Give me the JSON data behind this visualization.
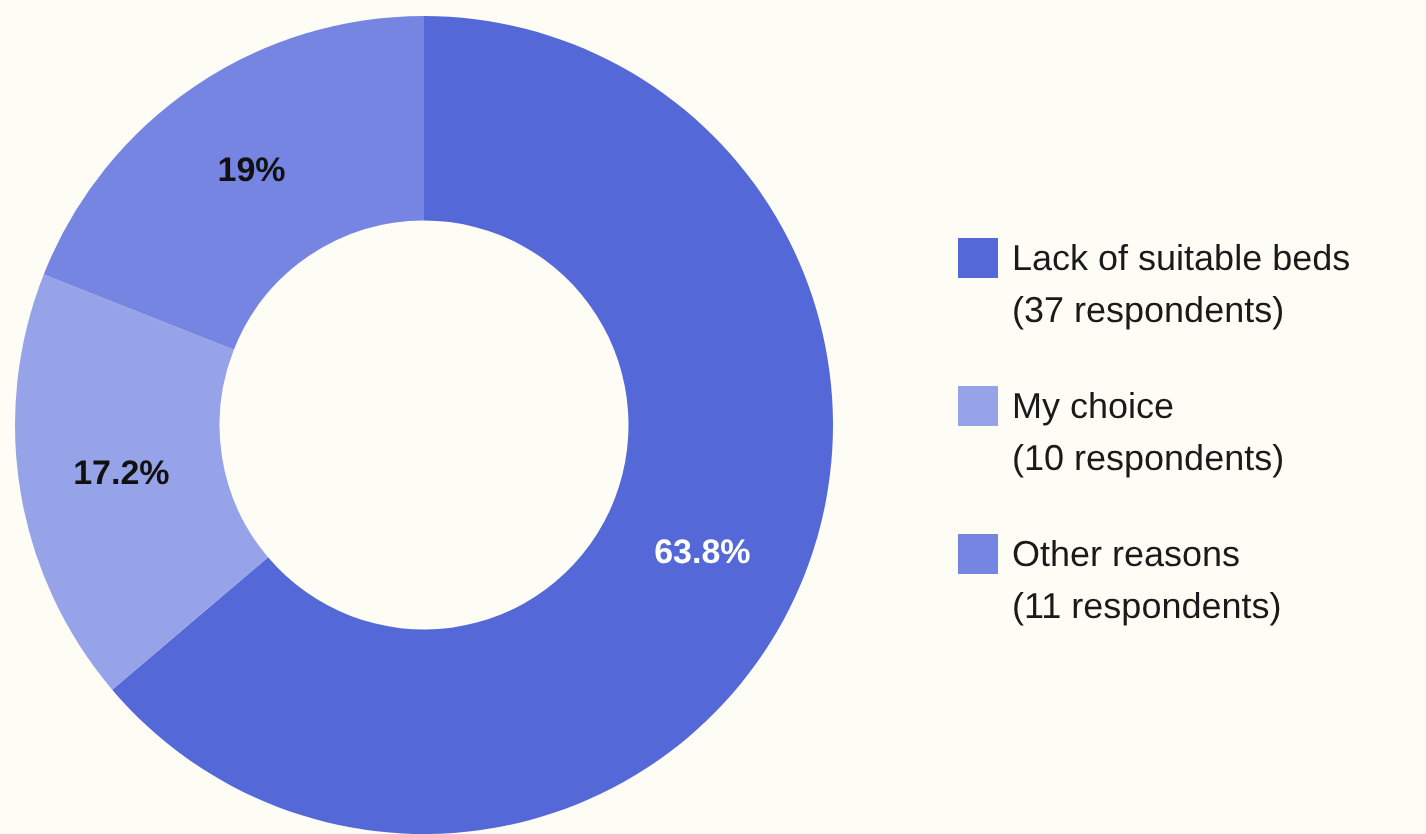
{
  "chart_data": {
    "type": "donut",
    "categories": [
      "Lack of suitable beds\n(37 respondents)",
      "My choice\n(10 respondents)",
      "Other reasons\n(11 respondents)"
    ],
    "values": [
      63.8,
      17.2,
      19
    ],
    "colors": [
      "#5468d8",
      "#97a3e8",
      "#7685e2"
    ],
    "value_labels": [
      "63.8%",
      "17.2%",
      "19%"
    ],
    "legend": "right"
  }
}
